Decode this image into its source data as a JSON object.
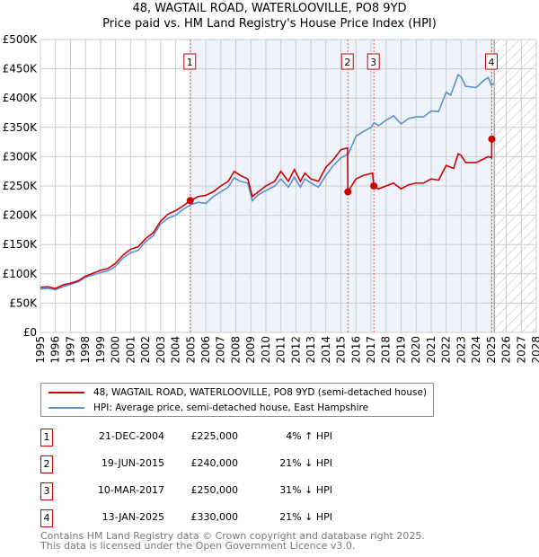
{
  "chart_data": {
    "type": "line",
    "title": "48, WAGTAIL ROAD, WATERLOOVILLE, PO8 9YD",
    "subtitle": "Price paid vs. HM Land Registry's House Price Index (HPI)",
    "xlim": [
      1995,
      2028
    ],
    "ylim": [
      0,
      500000
    ],
    "y_ticks": [
      "£0",
      "£50K",
      "£100K",
      "£150K",
      "£200K",
      "£250K",
      "£300K",
      "£350K",
      "£400K",
      "£450K",
      "£500K"
    ],
    "x_ticks": [
      "1995",
      "1996",
      "1997",
      "1998",
      "1999",
      "2000",
      "2001",
      "2002",
      "2003",
      "2004",
      "2005",
      "2006",
      "2007",
      "2008",
      "2009",
      "2010",
      "2011",
      "2012",
      "2013",
      "2014",
      "2015",
      "2016",
      "2017",
      "2018",
      "2019",
      "2020",
      "2021",
      "2022",
      "2023",
      "2024",
      "2025",
      "2026",
      "2027",
      "2028"
    ],
    "grid": true,
    "series": [
      {
        "name": "48, WAGTAIL ROAD, WATERLOOVILLE, PO8 9YD (semi-detached house)",
        "color": "#cc0000",
        "x": [
          1995,
          1995.5,
          1996,
          1996.5,
          1997,
          1997.5,
          1998,
          1998.5,
          1999,
          1999.5,
          2000,
          2000.5,
          2001,
          2001.5,
          2002,
          2002.5,
          2003,
          2003.5,
          2004,
          2004.5,
          2004.97,
          2005.5,
          2006,
          2006.5,
          2007,
          2007.5,
          2007.9,
          2008.3,
          2008.8,
          2009.1,
          2009.5,
          2010,
          2010.6,
          2011,
          2011.5,
          2011.9,
          2012.3,
          2012.6,
          2013,
          2013.5,
          2014,
          2014.5,
          2015,
          2015.44,
          2015.46,
          2016,
          2016.5,
          2017.1,
          2017.19,
          2017.5,
          2018,
          2018.5,
          2019,
          2019.5,
          2020,
          2020.5,
          2021,
          2021.5,
          2022,
          2022.5,
          2022.8,
          2023,
          2023.3,
          2024,
          2024.8,
          2025.03,
          2025.04,
          2025.2
        ],
        "y": [
          77,
          78,
          75,
          81,
          84,
          88,
          96,
          101,
          106,
          109,
          118,
          132,
          142,
          146,
          160,
          170,
          190,
          202,
          208,
          216,
          225,
          232,
          234,
          240,
          250,
          258,
          275,
          268,
          262,
          232,
          240,
          250,
          258,
          275,
          258,
          278,
          258,
          272,
          262,
          258,
          282,
          295,
          312,
          315,
          240,
          262,
          268,
          272,
          250,
          245,
          250,
          255,
          245,
          252,
          255,
          255,
          262,
          260,
          285,
          280,
          305,
          302,
          290,
          290,
          300,
          298,
          330,
          330
        ]
      },
      {
        "name": "HPI: Average price, semi-detached house, East Hampshire",
        "color": "#5b8fd4",
        "x": [
          1995,
          1995.5,
          1996,
          1996.5,
          1997,
          1997.5,
          1998,
          1998.5,
          1999,
          1999.5,
          2000,
          2000.5,
          2001,
          2001.5,
          2002,
          2002.5,
          2003,
          2003.5,
          2004,
          2004.5,
          2005,
          2005.5,
          2006,
          2006.5,
          2007,
          2007.5,
          2007.9,
          2008.3,
          2008.8,
          2009.1,
          2009.5,
          2010,
          2010.6,
          2011,
          2011.5,
          2011.9,
          2012.3,
          2012.6,
          2013,
          2013.5,
          2014,
          2014.5,
          2015,
          2015.5,
          2016,
          2016.5,
          2017,
          2017.2,
          2017.5,
          2018,
          2018.5,
          2019,
          2019.5,
          2020,
          2020.5,
          2021,
          2021.5,
          2022,
          2022.3,
          2022.8,
          2023,
          2023.3,
          2024,
          2024.5,
          2024.8,
          2025,
          2025.2
        ],
        "y": [
          74,
          75,
          73,
          78,
          82,
          86,
          94,
          98,
          102,
          105,
          113,
          127,
          136,
          140,
          155,
          165,
          185,
          195,
          200,
          210,
          218,
          222,
          220,
          232,
          240,
          248,
          264,
          258,
          255,
          225,
          235,
          242,
          250,
          262,
          248,
          265,
          248,
          262,
          255,
          248,
          268,
          285,
          298,
          305,
          335,
          343,
          350,
          358,
          353,
          362,
          370,
          356,
          365,
          368,
          368,
          378,
          377,
          410,
          405,
          440,
          436,
          420,
          418,
          430,
          435,
          422,
          425
        ]
      }
    ],
    "sales": [
      {
        "label": "1",
        "x": 2004.97,
        "y": 225000,
        "date": "21-DEC-2004",
        "price": "£225,000",
        "hpi": "4% ↑ HPI"
      },
      {
        "label": "2",
        "x": 2015.46,
        "y": 240000,
        "date": "19-JUN-2015",
        "price": "£240,000",
        "hpi": "21% ↓ HPI"
      },
      {
        "label": "3",
        "x": 2017.19,
        "y": 250000,
        "date": "10-MAR-2017",
        "price": "£250,000",
        "hpi": "31% ↓ HPI"
      },
      {
        "label": "4",
        "x": 2025.04,
        "y": 330000,
        "date": "13-JAN-2025",
        "price": "£330,000",
        "hpi": "21% ↓ HPI"
      }
    ],
    "shaded_range": [
      2004.97,
      2025.04
    ],
    "forecast_from": 2025.2
  },
  "legend": {
    "red": "48, WAGTAIL ROAD, WATERLOOVILLE, PO8 9YD (semi-detached house)",
    "blue": "HPI: Average price, semi-detached house, East Hampshire"
  },
  "footer": {
    "line1": "Contains HM Land Registry data © Crown copyright and database right 2025.",
    "line2": "This data is licensed under the Open Government Licence v3.0."
  }
}
